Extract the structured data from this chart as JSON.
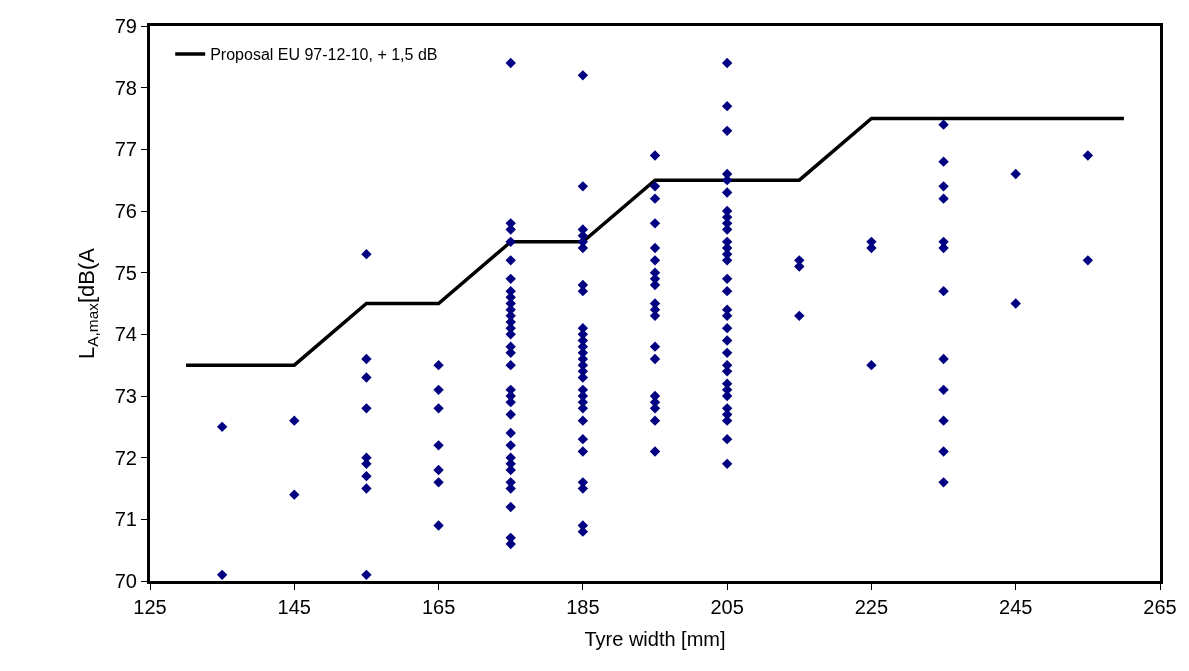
{
  "chart_data": {
    "type": "scatter",
    "xlabel": "Tyre width [mm]",
    "ylabel": "L$_{A,max}$[dB(A",
    "xlim": [
      125,
      265
    ],
    "xticks": [
      125,
      145,
      165,
      185,
      205,
      225,
      245,
      265
    ],
    "ylim": [
      70,
      79
    ],
    "yticks": [
      70,
      71,
      72,
      73,
      74,
      75,
      76,
      77,
      78,
      79
    ],
    "legend": "top left",
    "series": [
      {
        "type": "line",
        "name": "Proposal EU 97-12-10, + 1,5 dB",
        "color": "#000000",
        "marker": "none",
        "line_style": "solid",
        "x": [
          130,
          145,
          155,
          165,
          175,
          185,
          195,
          215,
          225,
          260
        ],
        "values": [
          73.5,
          73.5,
          74.5,
          74.5,
          75.5,
          75.5,
          76.5,
          76.5,
          77.5,
          77.5
        ]
      },
      {
        "color": "#000080",
        "marker": "diamond",
        "x": [
          135,
          135,
          145,
          145,
          155,
          155,
          155,
          155,
          155,
          155,
          155,
          155,
          155,
          165,
          165,
          165,
          165,
          165,
          165,
          165,
          175,
          175,
          175,
          175,
          175,
          175,
          175,
          175,
          175,
          175,
          175,
          175,
          175,
          175,
          175,
          175,
          175,
          175,
          175,
          175,
          175,
          175,
          175,
          175,
          175,
          175,
          175,
          175,
          175,
          175,
          175,
          185,
          185,
          185,
          185,
          185,
          185,
          185,
          185,
          185,
          185,
          185,
          185,
          185,
          185,
          185,
          185,
          185,
          185,
          185,
          185,
          185,
          185,
          185,
          185,
          185,
          185,
          185,
          185,
          195,
          195,
          195,
          195,
          195,
          195,
          195,
          195,
          195,
          195,
          195,
          195,
          195,
          195,
          195,
          195,
          195,
          195,
          195,
          205,
          205,
          205,
          205,
          205,
          205,
          205,
          205,
          205,
          205,
          205,
          205,
          205,
          205,
          205,
          205,
          205,
          205,
          205,
          205,
          205,
          205,
          205,
          205,
          205,
          205,
          205,
          205,
          205,
          205,
          205,
          215,
          215,
          215,
          225,
          225,
          225,
          235,
          235,
          235,
          235,
          235,
          235,
          235,
          235,
          235,
          235,
          235,
          235,
          245,
          245,
          255,
          255
        ],
        "values": [
          72.5,
          70.1,
          72.6,
          71.4,
          75.3,
          73.6,
          73.3,
          72.8,
          72.0,
          71.9,
          71.7,
          71.5,
          70.1,
          73.5,
          73.1,
          72.8,
          72.2,
          71.8,
          71.6,
          70.9,
          78.4,
          75.8,
          75.7,
          75.5,
          75.2,
          74.9,
          74.7,
          74.6,
          74.5,
          74.4,
          74.3,
          74.2,
          74.1,
          74.0,
          73.8,
          73.7,
          73.5,
          73.1,
          73.0,
          72.9,
          72.7,
          72.4,
          72.2,
          72.0,
          71.9,
          71.8,
          71.6,
          71.5,
          71.2,
          70.7,
          70.6,
          78.2,
          76.4,
          75.7,
          75.6,
          75.5,
          75.4,
          74.8,
          74.7,
          74.1,
          74.0,
          73.9,
          73.8,
          73.7,
          73.6,
          73.5,
          73.4,
          73.3,
          73.1,
          73.0,
          72.9,
          72.8,
          72.6,
          72.3,
          72.1,
          71.6,
          71.5,
          70.9,
          70.8,
          76.9,
          76.4,
          76.2,
          75.8,
          75.4,
          75.2,
          75.0,
          74.9,
          74.8,
          74.5,
          74.4,
          74.3,
          73.8,
          73.6,
          73.0,
          72.9,
          72.8,
          72.6,
          72.1,
          78.4,
          77.7,
          77.3,
          76.6,
          76.5,
          76.3,
          76.0,
          75.9,
          75.8,
          75.7,
          75.5,
          75.4,
          75.3,
          75.2,
          74.9,
          74.7,
          74.4,
          74.3,
          74.1,
          73.9,
          73.7,
          73.5,
          73.4,
          73.2,
          73.1,
          73.0,
          72.8,
          72.7,
          72.6,
          72.3,
          71.9,
          75.2,
          75.1,
          74.3,
          75.5,
          75.4,
          73.5,
          77.4,
          76.8,
          76.4,
          76.2,
          75.5,
          75.4,
          74.7,
          73.6,
          73.1,
          72.6,
          72.1,
          71.6,
          76.6,
          74.5,
          76.9,
          75.2
        ]
      }
    ]
  }
}
